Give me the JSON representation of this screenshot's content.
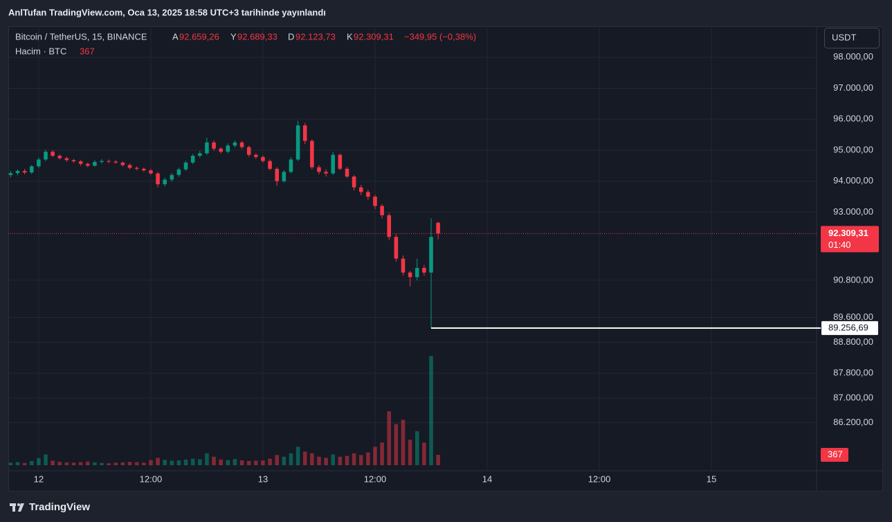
{
  "page_title": "AnlTufan TradingView.com, Oca 13, 2025 18:58 UTC+3 tarihinde yayınlandı",
  "footer": "TradingView",
  "currency_button": "USDT",
  "chart_data": {
    "type": "candlestick",
    "symbol": "Bitcoin / TetherUS, 15, BINANCE",
    "ohlc_prefixes": {
      "open": "A",
      "high": "Y",
      "low": "D",
      "close": "K"
    },
    "ohlc_labels": {
      "open": "92.659,26",
      "high": "92.689,33",
      "low": "92.123,73",
      "close": "92.309,31",
      "change": "−349,95 (−0,38%)"
    },
    "volume_title": "Hacim · BTC",
    "up_color": "#089981",
    "down_color": "#f23645",
    "x": [
      -3,
      -2.25,
      -1.5,
      -0.75,
      0,
      0.75,
      1.5,
      2.25,
      3,
      3.75,
      4.5,
      5.25,
      6,
      6.75,
      7.5,
      8.25,
      9,
      9.75,
      10.5,
      11.25,
      12,
      12.75,
      13.5,
      14.25,
      15,
      15.75,
      16.5,
      17.25,
      18,
      18.75,
      19.5,
      20.25,
      21,
      21.75,
      22.5,
      23.25,
      24,
      24.75,
      25.5,
      26.25,
      27,
      27.75,
      28.5,
      29.25,
      30,
      30.75,
      31.5,
      32.25,
      33,
      33.75,
      34.5,
      35.25,
      36,
      36.75,
      37.5,
      38.25,
      39,
      39.75,
      40.5,
      41.25,
      42,
      42.75
    ],
    "open": [
      94200,
      94260,
      94330,
      94280,
      94480,
      94700,
      94950,
      94820,
      94740,
      94680,
      94640,
      94560,
      94500,
      94620,
      94650,
      94630,
      94600,
      94520,
      94430,
      94400,
      94350,
      94250,
      93900,
      94050,
      94200,
      94380,
      94600,
      94820,
      94900,
      95250,
      95050,
      94950,
      95150,
      95250,
      95100,
      94850,
      94780,
      94650,
      94400,
      94000,
      94300,
      94700,
      95800,
      95300,
      94450,
      94300,
      94250,
      94850,
      94400,
      94150,
      93800,
      93650,
      93500,
      93200,
      92900,
      92200,
      91500,
      91050,
      90900,
      91200,
      91050,
      92659.26
    ],
    "high": [
      94330,
      94380,
      94400,
      94520,
      94760,
      95020,
      95000,
      94870,
      94790,
      94720,
      94690,
      94600,
      94680,
      94710,
      94700,
      94680,
      94640,
      94570,
      94480,
      94440,
      94400,
      94300,
      94120,
      94260,
      94440,
      94660,
      94880,
      94980,
      95400,
      95320,
      95100,
      95220,
      95320,
      95300,
      95150,
      94900,
      94830,
      94700,
      94450,
      94360,
      94780,
      95950,
      95880,
      95350,
      94520,
      94380,
      94950,
      94900,
      94460,
      94200,
      93880,
      93720,
      93560,
      93260,
      92980,
      92300,
      91600,
      91100,
      91500,
      91300,
      92800,
      92689.33
    ],
    "low": [
      94120,
      94190,
      94220,
      94230,
      94420,
      94650,
      94780,
      94700,
      94630,
      94590,
      94500,
      94450,
      94460,
      94570,
      94580,
      94560,
      94470,
      94380,
      94350,
      94300,
      94200,
      93800,
      93830,
      93980,
      94140,
      94330,
      94550,
      94760,
      94850,
      94980,
      94890,
      94900,
      95080,
      95040,
      94790,
      94720,
      94600,
      94350,
      93850,
      93950,
      94250,
      94650,
      95200,
      94380,
      94220,
      94150,
      94200,
      94350,
      94100,
      93700,
      93550,
      93400,
      93100,
      92800,
      92100,
      91400,
      90950,
      90600,
      90800,
      90950,
      89256.69,
      92123.73
    ],
    "close": [
      94260,
      94330,
      94280,
      94480,
      94700,
      94950,
      94820,
      94740,
      94680,
      94640,
      94560,
      94500,
      94620,
      94650,
      94630,
      94600,
      94520,
      94430,
      94400,
      94350,
      94250,
      93900,
      94050,
      94200,
      94380,
      94600,
      94820,
      94900,
      95250,
      95050,
      94950,
      95150,
      95250,
      95100,
      94850,
      94780,
      94650,
      94400,
      94000,
      94300,
      94700,
      95800,
      95300,
      94450,
      94300,
      94250,
      94850,
      94400,
      94150,
      93800,
      93650,
      93500,
      93200,
      92900,
      92200,
      91500,
      91050,
      90900,
      91200,
      91050,
      92200,
      92309.31
    ],
    "volume": {
      "values": [
        90,
        110,
        80,
        150,
        250,
        380,
        160,
        120,
        100,
        90,
        110,
        130,
        100,
        80,
        70,
        90,
        100,
        120,
        110,
        90,
        180,
        260,
        190,
        160,
        170,
        200,
        230,
        210,
        420,
        300,
        200,
        180,
        220,
        170,
        150,
        160,
        170,
        230,
        360,
        300,
        420,
        650,
        480,
        420,
        300,
        260,
        380,
        300,
        330,
        420,
        360,
        450,
        650,
        800,
        1900,
        1450,
        1600,
        900,
        1200,
        800,
        3850,
        367
      ],
      "vlim": [
        0,
        4000
      ]
    },
    "xlim": [
      -3.25,
      83.25
    ],
    "ylim": [
      84650,
      99000
    ],
    "xticks": [
      {
        "value": 0,
        "label": "12"
      },
      {
        "value": 12,
        "label": "12:00"
      },
      {
        "value": 24,
        "label": "13"
      },
      {
        "value": 36,
        "label": "12:00"
      },
      {
        "value": 48,
        "label": "14"
      },
      {
        "value": 60,
        "label": "12:00"
      },
      {
        "value": 72,
        "label": "15"
      }
    ],
    "yticks": [
      {
        "value": 98000,
        "label": "98.000,00"
      },
      {
        "value": 97000,
        "label": "97.000,00"
      },
      {
        "value": 96000,
        "label": "96.000,00"
      },
      {
        "value": 95000,
        "label": "95.000,00"
      },
      {
        "value": 94000,
        "label": "94.000,00"
      },
      {
        "value": 93000,
        "label": "93.000,00"
      },
      {
        "value": 90800,
        "label": "90.800,00"
      },
      {
        "value": 89600,
        "label": "89.600,00"
      },
      {
        "value": 88800,
        "label": "88.800,00"
      },
      {
        "value": 87800,
        "label": "87.800,00"
      },
      {
        "value": 87000,
        "label": "87.000,00"
      },
      {
        "value": 86200,
        "label": "86.200,00"
      }
    ],
    "grid": true,
    "last_price": {
      "value": 92309.31,
      "label": "92.309,31",
      "countdown": "01:40"
    },
    "annotations": [
      {
        "value": 89256.69,
        "label": "89.256,69"
      }
    ]
  }
}
